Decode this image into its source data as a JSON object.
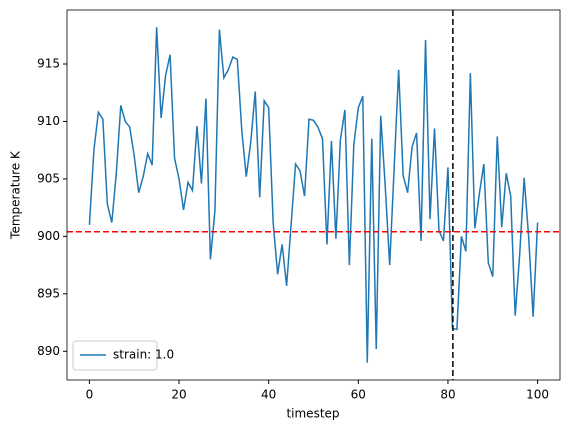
{
  "chart_data": {
    "type": "line",
    "xlabel": "timestep",
    "ylabel": "Temperature K",
    "x": [
      0,
      1,
      2,
      3,
      4,
      5,
      6,
      7,
      8,
      9,
      10,
      11,
      12,
      13,
      14,
      15,
      16,
      17,
      18,
      19,
      20,
      21,
      22,
      23,
      24,
      25,
      26,
      27,
      28,
      29,
      30,
      31,
      32,
      33,
      34,
      35,
      36,
      37,
      38,
      39,
      40,
      41,
      42,
      43,
      44,
      45,
      46,
      47,
      48,
      49,
      50,
      51,
      52,
      53,
      54,
      55,
      56,
      57,
      58,
      59,
      60,
      61,
      62,
      63,
      64,
      65,
      66,
      67,
      68,
      69,
      70,
      71,
      72,
      73,
      74,
      75,
      76,
      77,
      78,
      79,
      80,
      81,
      82,
      83,
      84,
      85,
      86,
      87,
      88,
      89,
      90,
      91,
      92,
      93,
      94,
      95,
      96,
      97,
      98,
      99,
      100
    ],
    "series": [
      {
        "name": "strain: 1.0",
        "color": "#1f77b4",
        "values": [
          901,
          907.5,
          910.8,
          910.2,
          902.8,
          901.2,
          905.5,
          911.4,
          910,
          909.5,
          907,
          903.8,
          905.2,
          907.2,
          906.2,
          918.2,
          910.3,
          914,
          915.8,
          906.8,
          905,
          902.3,
          904.7,
          904,
          909.6,
          904.6,
          912,
          898,
          902.2,
          918,
          913.8,
          914.5,
          915.6,
          915.4,
          909.2,
          905.2,
          908.2,
          912.6,
          903.4,
          911.8,
          911.2,
          901.2,
          896.7,
          899.3,
          895.7,
          901,
          906.3,
          905.7,
          903.5,
          910.2,
          910.1,
          909.5,
          908.5,
          899.3,
          908.3,
          899.8,
          908.4,
          911,
          897.5,
          908,
          911.2,
          912.2,
          889,
          908.5,
          890.2,
          910.5,
          904.4,
          897.5,
          906,
          914.5,
          905.3,
          903.8,
          907.8,
          909,
          899.6,
          917.1,
          901.5,
          909.4,
          900.5,
          899.6,
          906,
          892,
          891.9,
          900,
          898.7,
          914.2,
          900.7,
          903.7,
          906.3,
          897.7,
          896.5,
          908.7,
          900.8,
          905.5,
          903.5,
          893.1,
          898.4,
          905.1,
          900,
          893,
          901.2
        ]
      }
    ],
    "hline": {
      "value": 900.4,
      "color": "#ff0000"
    },
    "vline": {
      "value": 81.1,
      "color": "#000000"
    },
    "xlim": [
      -5,
      105
    ],
    "xticks": [
      0,
      20,
      40,
      60,
      80,
      100
    ],
    "ylim": [
      887.5,
      919.7
    ],
    "yticks": [
      890,
      895,
      900,
      905,
      910,
      915
    ],
    "legend": "lower left"
  }
}
